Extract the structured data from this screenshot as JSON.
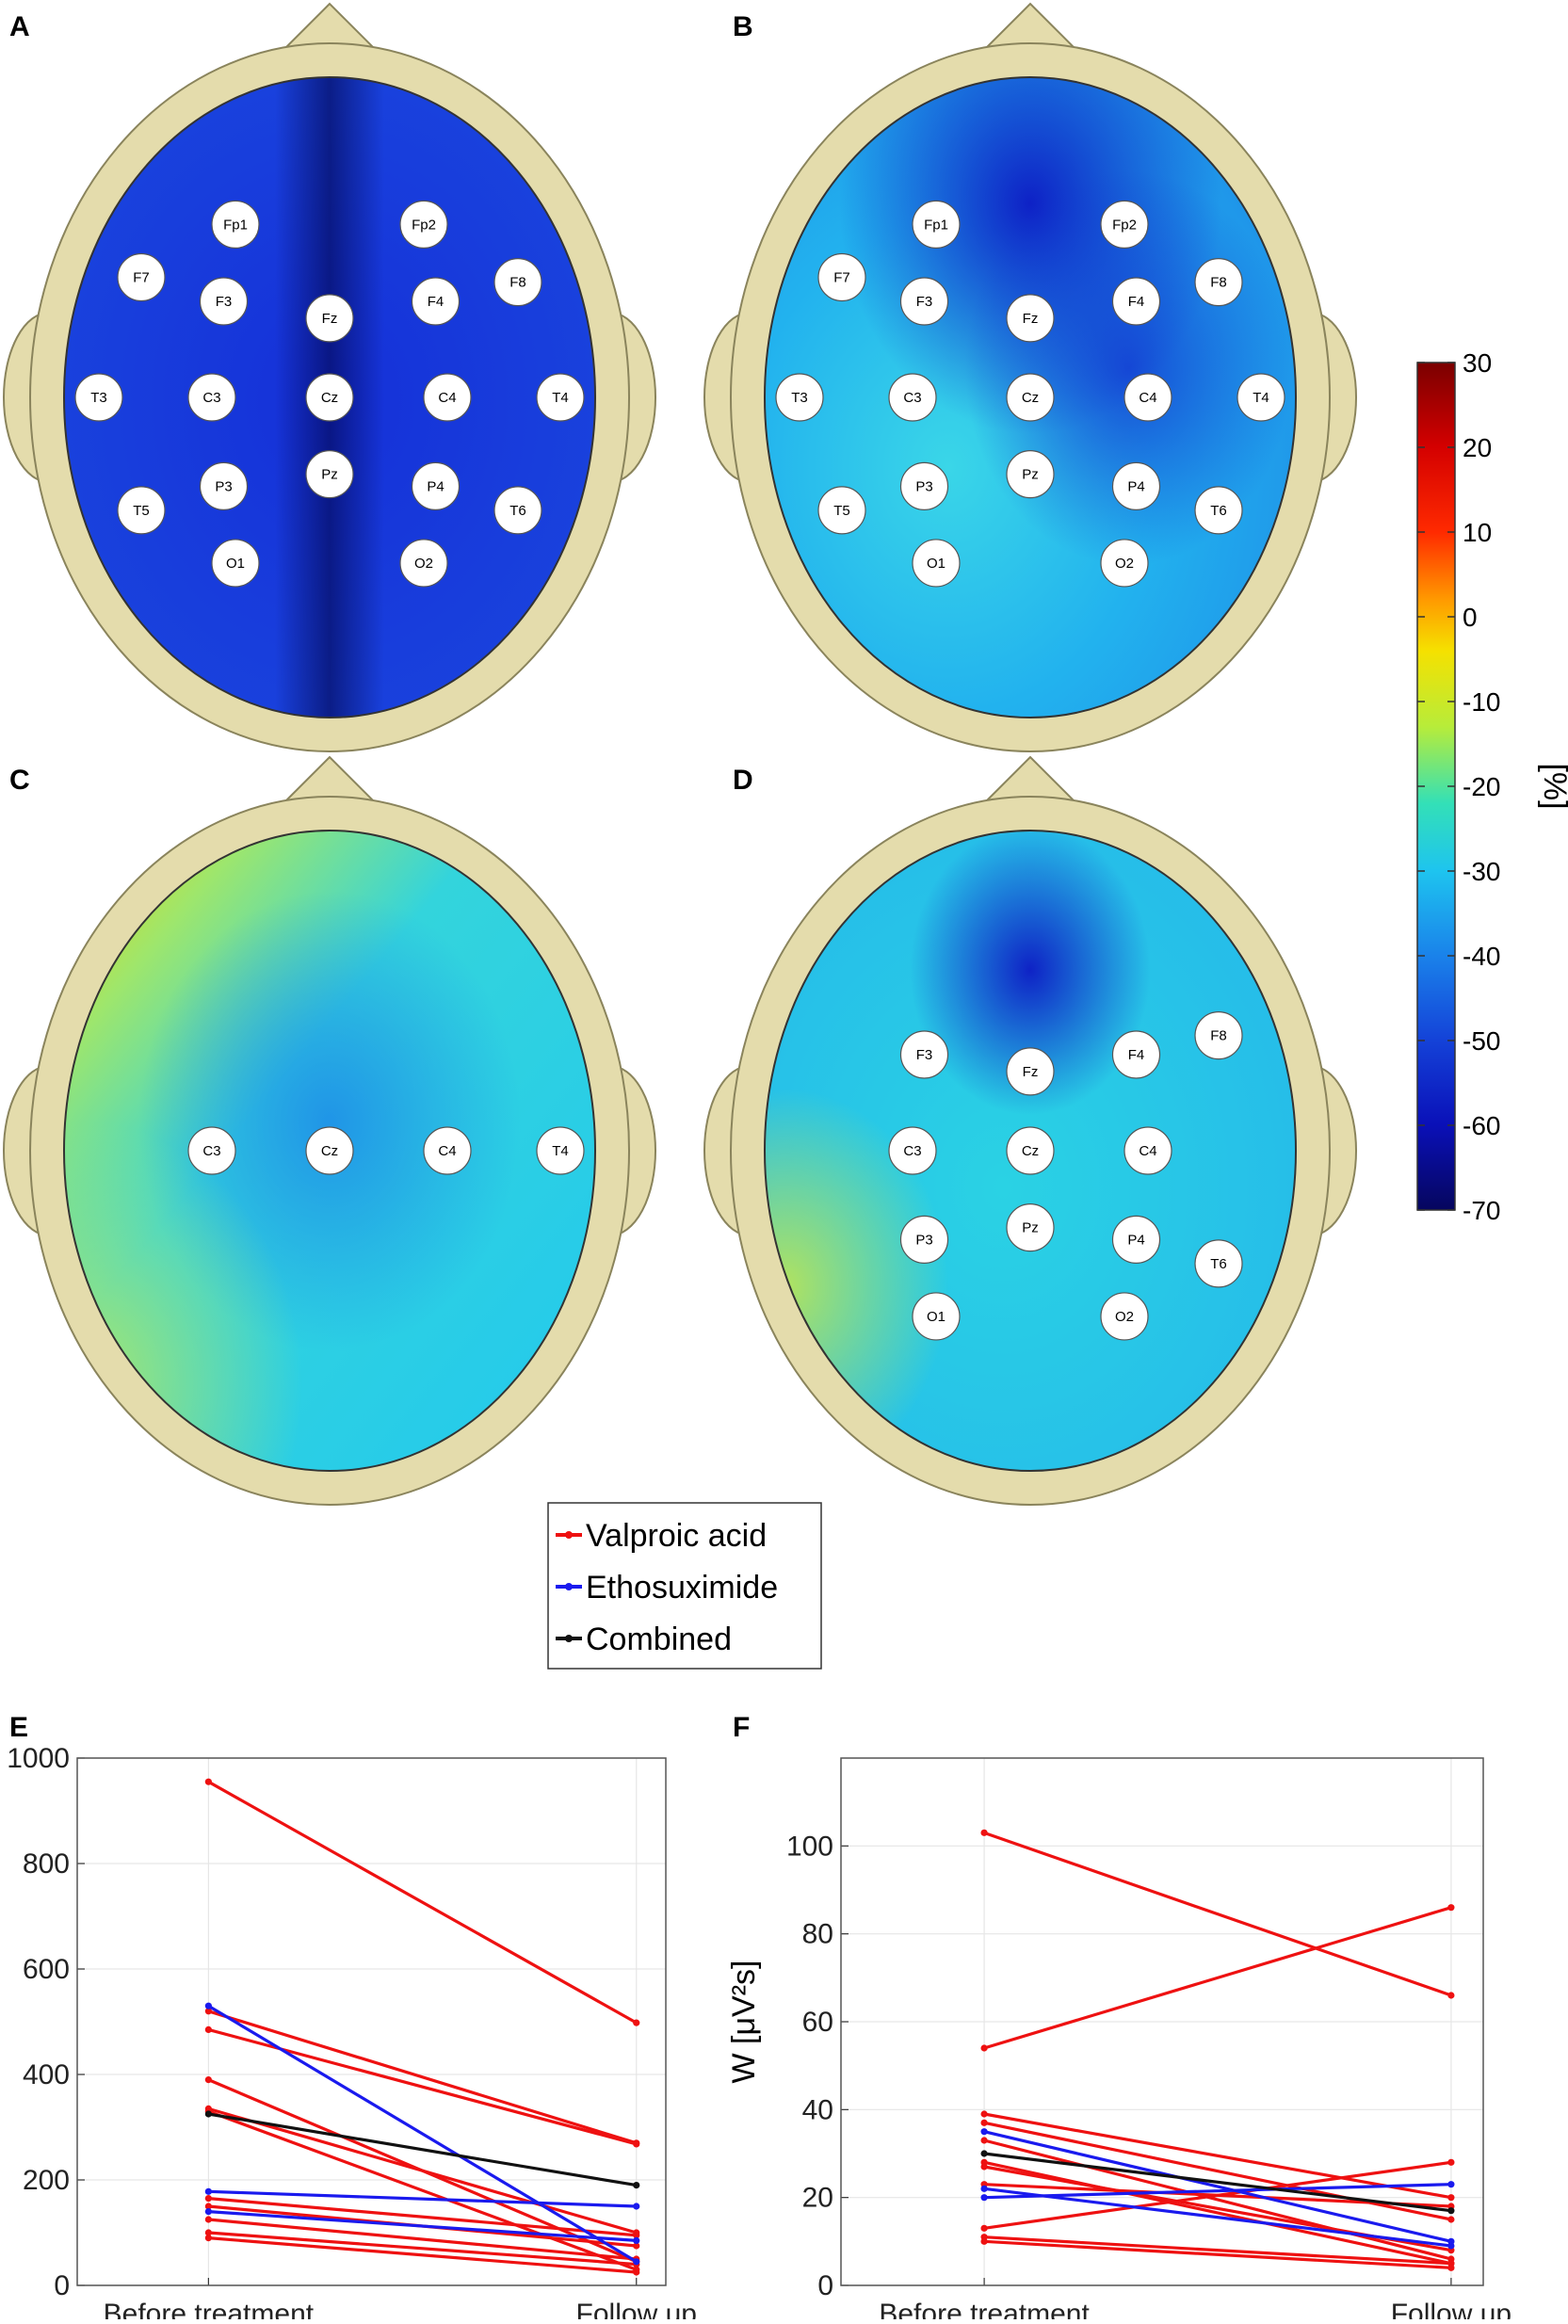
{
  "panel_labels": [
    "A",
    "B",
    "C",
    "D",
    "E",
    "F"
  ],
  "colorbar": {
    "unit": "[%]",
    "ticks": [
      "30",
      "20",
      "10",
      "0",
      "-10",
      "-20",
      "-30",
      "-40",
      "-50",
      "-60",
      "-70"
    ]
  },
  "topomaps": [
    {
      "id": "A",
      "electrodes": [
        "Fp1",
        "Fp2",
        "F7",
        "F3",
        "Fz",
        "F4",
        "F8",
        "T3",
        "C3",
        "Cz",
        "C4",
        "T4",
        "P3",
        "Pz",
        "P4",
        "T5",
        "T6",
        "O1",
        "O2"
      ]
    },
    {
      "id": "B",
      "electrodes": [
        "Fp1",
        "Fp2",
        "F7",
        "F3",
        "Fz",
        "F4",
        "F8",
        "T3",
        "C3",
        "Cz",
        "C4",
        "T4",
        "P3",
        "Pz",
        "P4",
        "T5",
        "T6",
        "O1",
        "O2"
      ]
    },
    {
      "id": "C",
      "electrodes": [
        "C3",
        "Cz",
        "C4",
        "T4"
      ]
    },
    {
      "id": "D",
      "electrodes": [
        "F3",
        "Fz",
        "F4",
        "F8",
        "C3",
        "Cz",
        "C4",
        "P3",
        "Pz",
        "P4",
        "T6",
        "O1",
        "O2"
      ]
    }
  ],
  "legend": [
    "Valproic acid",
    "Ethosuximide",
    "Combined"
  ],
  "colors": {
    "valproic": "#ee1111",
    "ethosuximide": "#1a1aee",
    "combined": "#111111"
  },
  "chart_data": [
    {
      "panel": "E",
      "type": "line",
      "categories": [
        "Before treatment",
        "Follow up"
      ],
      "ylabel": "W [μV²s]",
      "ylim": [
        0,
        1000
      ],
      "yticks": [
        "0",
        "200",
        "400",
        "600",
        "800",
        "1000"
      ],
      "grid": true,
      "series": [
        {
          "name": "Valproic acid",
          "values": [
            955,
            498
          ]
        },
        {
          "name": "Valproic acid",
          "values": [
            520,
            270
          ]
        },
        {
          "name": "Valproic acid",
          "values": [
            485,
            268
          ]
        },
        {
          "name": "Valproic acid",
          "values": [
            390,
            45
          ]
        },
        {
          "name": "Valproic acid",
          "values": [
            335,
            100
          ]
        },
        {
          "name": "Valproic acid",
          "values": [
            330,
            30
          ]
        },
        {
          "name": "Valproic acid",
          "values": [
            165,
            95
          ]
        },
        {
          "name": "Valproic acid",
          "values": [
            150,
            75
          ]
        },
        {
          "name": "Valproic acid",
          "values": [
            125,
            50
          ]
        },
        {
          "name": "Valproic acid",
          "values": [
            100,
            40
          ]
        },
        {
          "name": "Valproic acid",
          "values": [
            90,
            25
          ]
        },
        {
          "name": "Ethosuximide",
          "values": [
            530,
            45
          ]
        },
        {
          "name": "Ethosuximide",
          "values": [
            178,
            150
          ]
        },
        {
          "name": "Ethosuximide",
          "values": [
            140,
            85
          ]
        },
        {
          "name": "Combined",
          "values": [
            325,
            190
          ]
        }
      ]
    },
    {
      "panel": "F",
      "type": "line",
      "categories": [
        "Before treatment",
        "Follow up"
      ],
      "ylabel": "W [μV²s]",
      "ylim": [
        0,
        120
      ],
      "yticks": [
        "0",
        "20",
        "40",
        "60",
        "80",
        "100"
      ],
      "grid": true,
      "series": [
        {
          "name": "Valproic acid",
          "values": [
            103,
            66
          ]
        },
        {
          "name": "Valproic acid",
          "values": [
            54,
            86
          ]
        },
        {
          "name": "Valproic acid",
          "values": [
            39,
            20
          ]
        },
        {
          "name": "Valproic acid",
          "values": [
            37,
            15
          ]
        },
        {
          "name": "Valproic acid",
          "values": [
            33,
            6
          ]
        },
        {
          "name": "Valproic acid",
          "values": [
            28,
            5
          ]
        },
        {
          "name": "Valproic acid",
          "values": [
            27,
            8
          ]
        },
        {
          "name": "Valproic acid",
          "values": [
            23,
            18
          ]
        },
        {
          "name": "Valproic acid",
          "values": [
            13,
            28
          ]
        },
        {
          "name": "Valproic acid",
          "values": [
            11,
            5
          ]
        },
        {
          "name": "Valproic acid",
          "values": [
            10,
            4
          ]
        },
        {
          "name": "Ethosuximide",
          "values": [
            35,
            10
          ]
        },
        {
          "name": "Ethosuximide",
          "values": [
            20,
            23
          ]
        },
        {
          "name": "Ethosuximide",
          "values": [
            22,
            9
          ]
        },
        {
          "name": "Combined",
          "values": [
            30,
            17
          ]
        }
      ]
    }
  ]
}
